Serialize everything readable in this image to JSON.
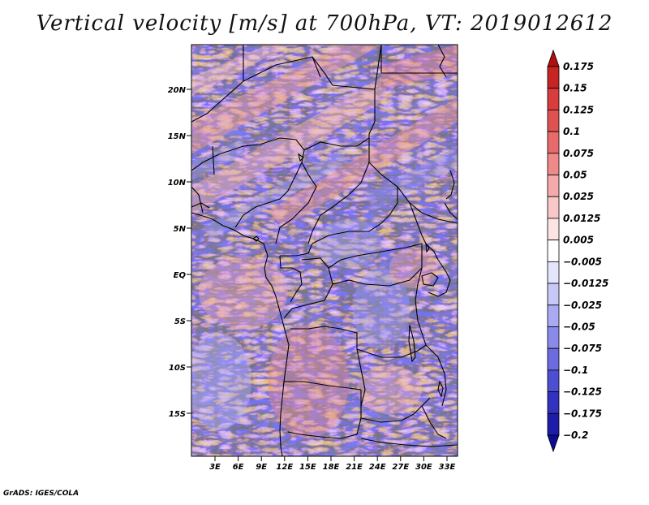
{
  "title": "Vertical velocity [m/s] at 700hPa, VT: 2019012612",
  "credit": "GrADS: IGES/COLA",
  "map": {
    "lon_range": [
      0,
      35
    ],
    "lat_range": [
      -20,
      25
    ],
    "lat_ticks": [
      "20N",
      "15N",
      "10N",
      "5N",
      "EQ",
      "5S",
      "10S",
      "15S"
    ],
    "lon_ticks": [
      "3E",
      "6E",
      "9E",
      "12E",
      "15E",
      "18E",
      "21E",
      "24E",
      "27E",
      "30E",
      "33E"
    ],
    "variable": "vertical velocity",
    "level": "700hPa"
  },
  "colorbar": {
    "labels": [
      "0.175",
      "0.15",
      "0.125",
      "0.1",
      "0.075",
      "0.05",
      "0.025",
      "0.0125",
      "0.005",
      "−0.005",
      "−0.0125",
      "−0.025",
      "−0.05",
      "−0.075",
      "−0.1",
      "−0.125",
      "−0.175",
      "−0.2"
    ],
    "colors": [
      "#b01010",
      "#c82424",
      "#d83c3c",
      "#e05252",
      "#e86a6a",
      "#ee8a8a",
      "#f4aaaa",
      "#f8c8c8",
      "#fce4e4",
      "#ffffff",
      "#e4e4fc",
      "#c8c8f8",
      "#aaaaf2",
      "#8a8aea",
      "#6c6ce0",
      "#4e4ed4",
      "#3232c0",
      "#1c1ca8",
      "#0c0c90"
    ]
  }
}
